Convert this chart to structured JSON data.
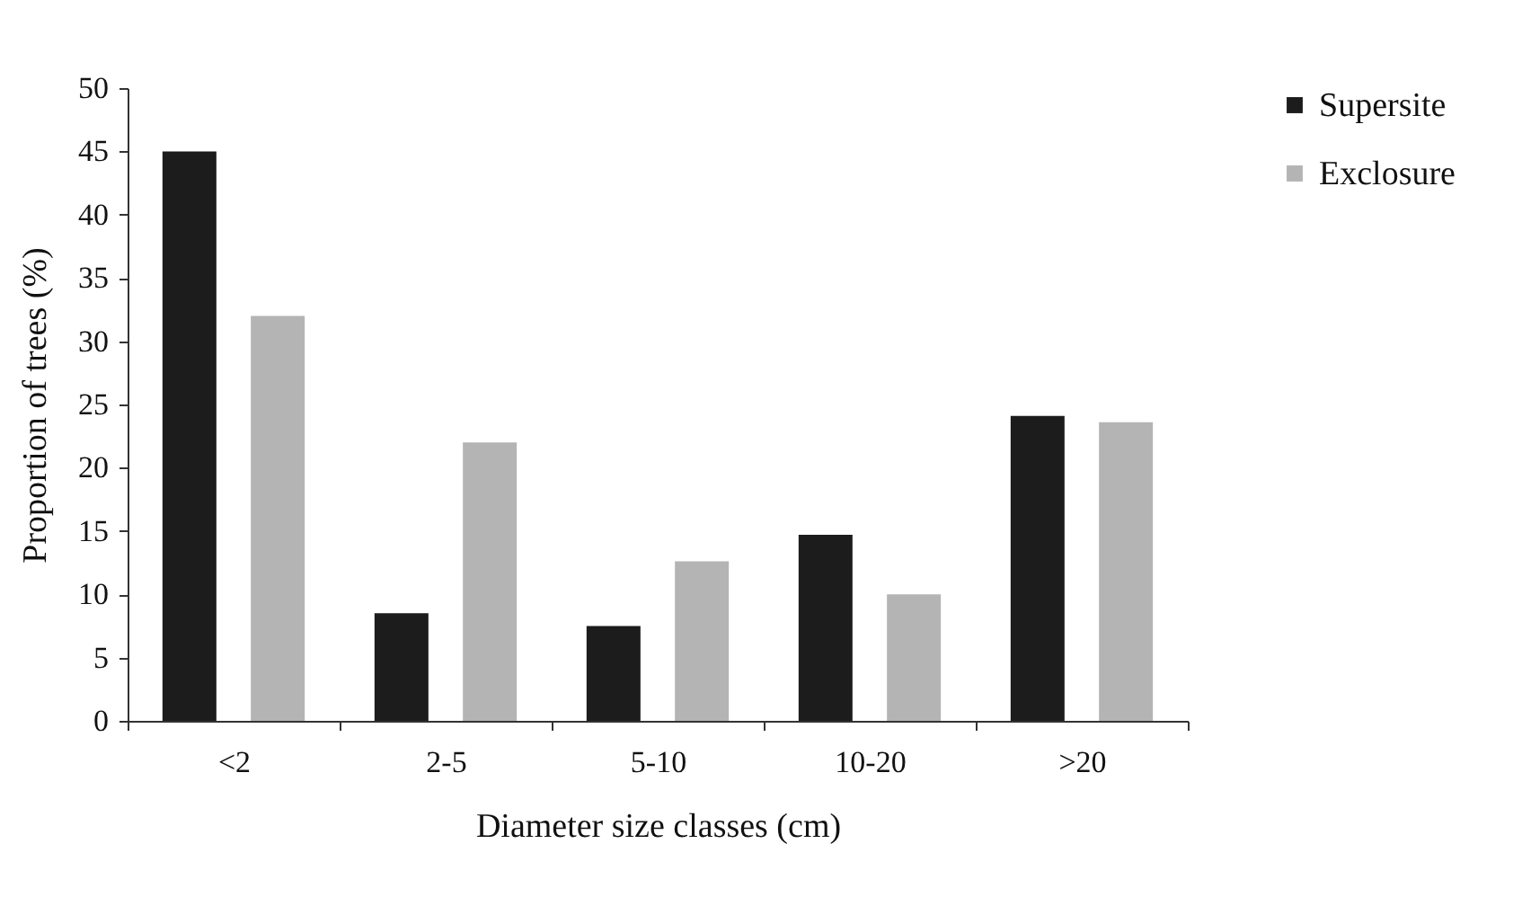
{
  "chart_data": {
    "type": "bar",
    "xlabel": "Diameter size classes (cm)",
    "ylabel": "Proportion of trees (%)",
    "categories": [
      "<2",
      "2-5",
      "5-10",
      "10-20",
      ">20"
    ],
    "series": [
      {
        "name": "Supersite",
        "color": "#1c1c1c",
        "values": [
          45,
          8.5,
          7.5,
          14.7,
          24.1
        ]
      },
      {
        "name": "Exclosure",
        "color": "#b4b4b4",
        "values": [
          32,
          22,
          12.6,
          10,
          23.6
        ]
      }
    ],
    "ylim": [
      0,
      50
    ],
    "yticks": [
      0,
      5,
      10,
      15,
      20,
      25,
      30,
      35,
      40,
      45,
      50
    ],
    "grid": false,
    "legend": "top right"
  }
}
